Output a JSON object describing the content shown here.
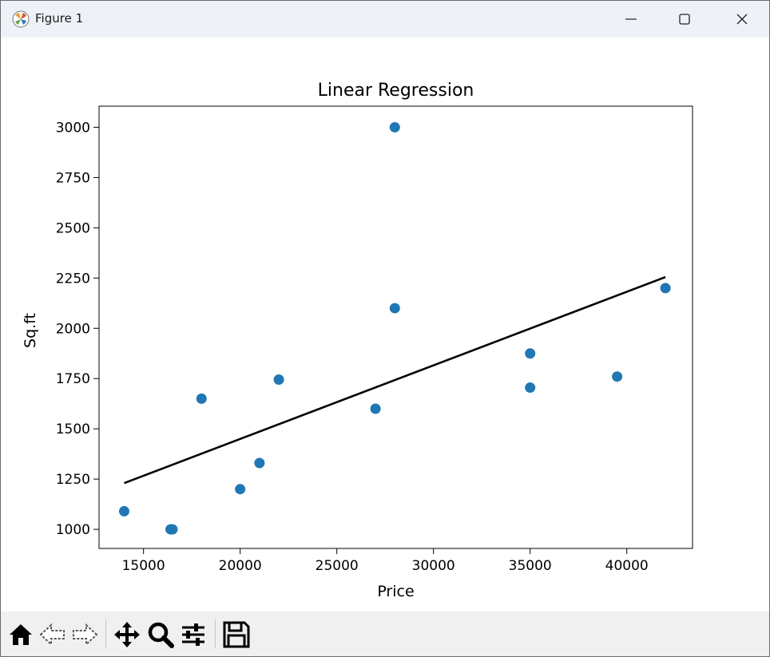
{
  "window": {
    "title": "Figure 1"
  },
  "toolbar": {
    "home": "home-icon",
    "back": "back-arrow-icon",
    "forward": "forward-arrow-icon",
    "pan": "pan-icon",
    "zoom": "zoom-icon",
    "configure": "configure-subplots-icon",
    "save": "save-icon"
  },
  "colors": {
    "points": "#1f77b4",
    "line": "#000000",
    "titlebar": "#eef2f8",
    "toolbar": "#f0f0f0"
  },
  "chart_data": {
    "type": "scatter",
    "title": "Linear Regression",
    "xlabel": "Price",
    "ylabel": "Sq.ft",
    "xlim": [
      12700,
      43400
    ],
    "ylim": [
      905,
      3105
    ],
    "xticks": [
      15000,
      20000,
      25000,
      30000,
      35000,
      40000
    ],
    "yticks": [
      1000,
      1250,
      1500,
      1750,
      2000,
      2250,
      2500,
      2750,
      3000
    ],
    "series": [
      {
        "type": "scatter",
        "x": [
          14000,
          16400,
          16500,
          18000,
          20000,
          21000,
          22000,
          27000,
          28000,
          28000,
          35000,
          35000,
          39500,
          42000
        ],
        "y": [
          1090,
          1000,
          1000,
          1650,
          1200,
          1330,
          1745,
          1600,
          3000,
          2100,
          1875,
          1705,
          1760,
          2200
        ]
      },
      {
        "type": "line",
        "x": [
          14000,
          42000
        ],
        "y": [
          1230,
          2255
        ]
      }
    ],
    "grid": false,
    "legend": "none"
  }
}
